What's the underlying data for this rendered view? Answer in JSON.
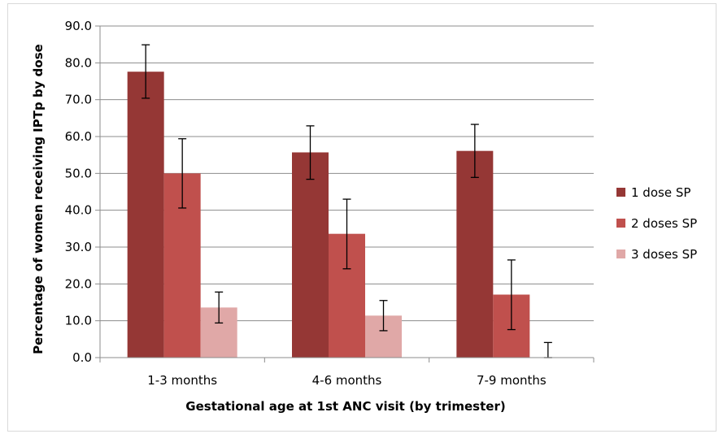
{
  "chart_data": {
    "type": "bar",
    "categories": [
      "1-3 months",
      "4-6 months",
      "7-9 months"
    ],
    "series": [
      {
        "name": "1 dose SP",
        "color": "#953735",
        "values": [
          77.6,
          55.7,
          56.1
        ],
        "error_low": [
          70.4,
          48.4,
          48.9
        ],
        "error_high": [
          84.9,
          62.9,
          63.3
        ]
      },
      {
        "name": "2 doses SP",
        "color": "#c0504d",
        "values": [
          50.0,
          33.6,
          17.1
        ],
        "error_low": [
          40.6,
          24.1,
          7.6
        ],
        "error_high": [
          59.4,
          43.0,
          26.5
        ]
      },
      {
        "name": "3 doses SP",
        "color": "#e0a8a7",
        "values": [
          13.6,
          11.4,
          0.0
        ],
        "error_low": [
          9.4,
          7.3,
          0.0
        ],
        "error_high": [
          17.8,
          15.5,
          4.1
        ]
      }
    ],
    "y_ticks": [
      "0.0",
      "10.0",
      "20.0",
      "30.0",
      "40.0",
      "50.0",
      "60.0",
      "70.0",
      "80.0",
      "90.0"
    ],
    "ylim": [
      0,
      90
    ],
    "xlabel": "Gestational age at 1st ANC visit (by trimester)",
    "ylabel": "Percentage of women receiving IPTp by dose",
    "grid": true,
    "legend_position": "right"
  }
}
